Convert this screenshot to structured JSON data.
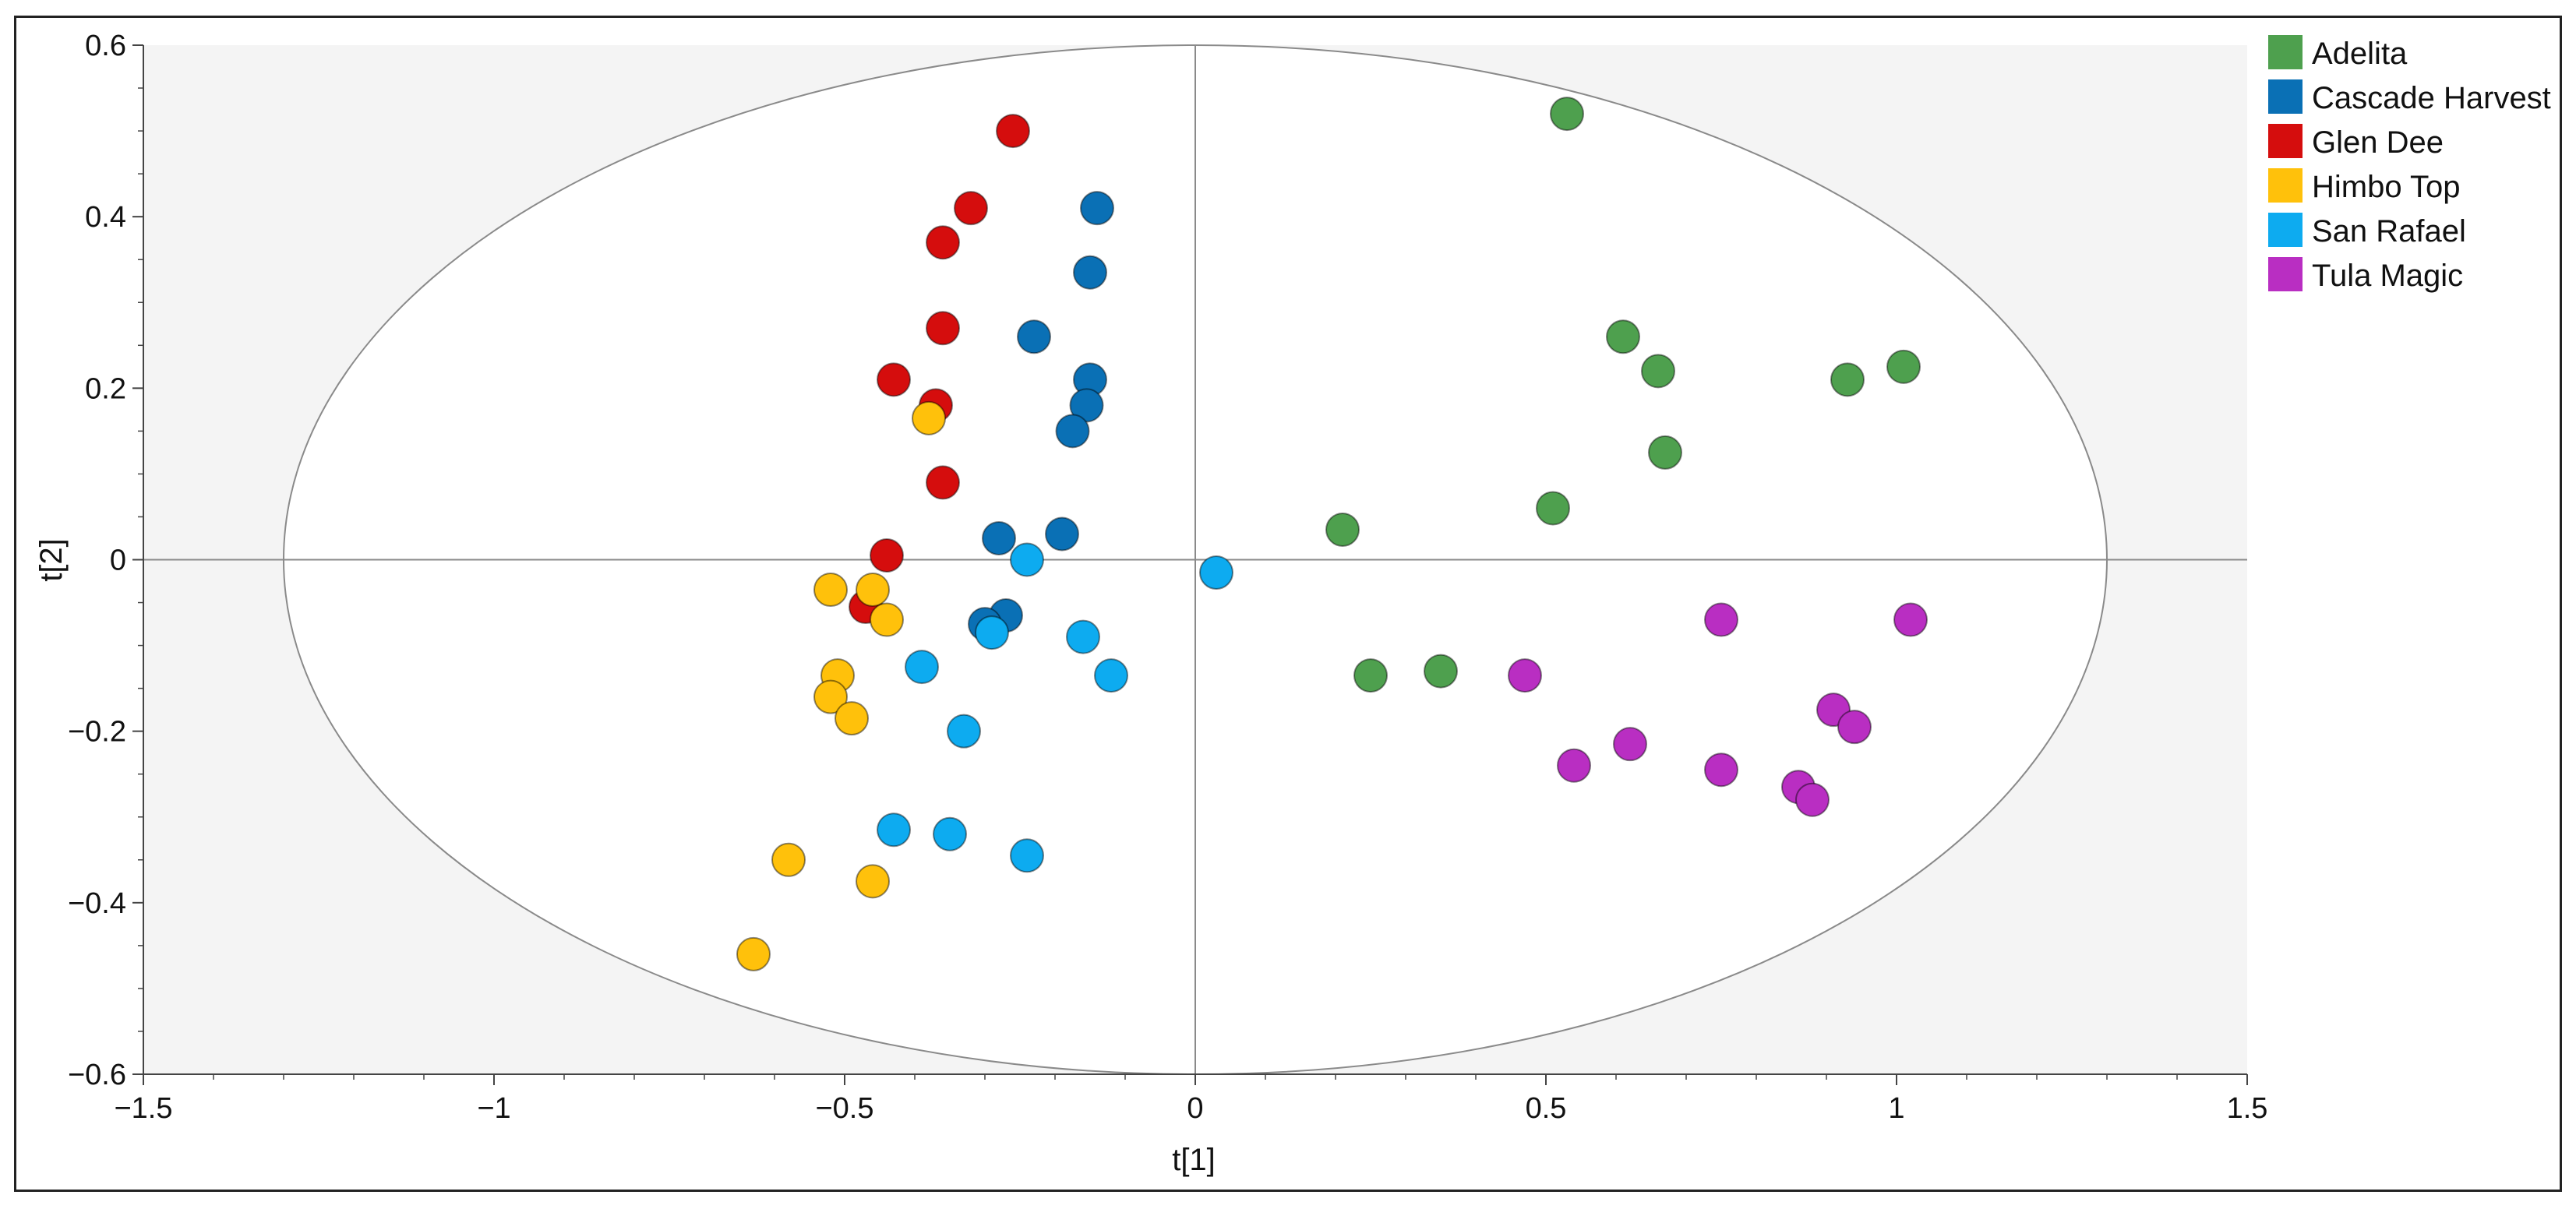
{
  "chart_data": {
    "type": "scatter",
    "title": "",
    "xlabel": "t[1]",
    "ylabel": "t[2]",
    "xlim": [
      -1.5,
      1.5
    ],
    "ylim": [
      -0.6,
      0.6
    ],
    "x_ticks": [
      -1.5,
      -1,
      -0.5,
      0,
      0.5,
      1,
      1.5
    ],
    "x_tick_labels": [
      "−1.5",
      "−1",
      "−0.5",
      "0",
      "0.5",
      "1",
      "1.5"
    ],
    "y_ticks": [
      0.6,
      0.4,
      0.2,
      0,
      -0.2,
      -0.4,
      -0.6
    ],
    "y_tick_labels": [
      "0.6",
      "0.4",
      "0.2",
      "0",
      "−0.2",
      "−0.4",
      "−0.6"
    ],
    "grid": false,
    "legend_position": "top-right",
    "hotelling_ellipse": {
      "center": [
        0,
        0
      ],
      "radius_x": 1.3,
      "radius_y": 0.6
    },
    "series": [
      {
        "name": "Adelita",
        "color": "#4ea04e",
        "points": [
          [
            0.53,
            0.52
          ],
          [
            0.61,
            0.26
          ],
          [
            0.66,
            0.22
          ],
          [
            0.67,
            0.125
          ],
          [
            0.51,
            0.06
          ],
          [
            0.93,
            0.21
          ],
          [
            1.01,
            0.225
          ],
          [
            0.21,
            0.035
          ],
          [
            0.25,
            -0.135
          ],
          [
            0.35,
            -0.13
          ]
        ]
      },
      {
        "name": "Cascade Harvest",
        "color": "#0a70b5",
        "points": [
          [
            -0.14,
            0.41
          ],
          [
            -0.15,
            0.335
          ],
          [
            -0.23,
            0.26
          ],
          [
            -0.15,
            0.21
          ],
          [
            -0.155,
            0.18
          ],
          [
            -0.175,
            0.15
          ],
          [
            -0.19,
            0.03
          ],
          [
            -0.28,
            0.025
          ],
          [
            -0.27,
            -0.065
          ],
          [
            -0.3,
            -0.075
          ]
        ]
      },
      {
        "name": "Glen Dee",
        "color": "#d50d0d",
        "points": [
          [
            -0.26,
            0.5
          ],
          [
            -0.32,
            0.41
          ],
          [
            -0.36,
            0.37
          ],
          [
            -0.36,
            0.27
          ],
          [
            -0.43,
            0.21
          ],
          [
            -0.37,
            0.18
          ],
          [
            -0.36,
            0.09
          ],
          [
            -0.44,
            0.005
          ],
          [
            -0.47,
            -0.055
          ]
        ]
      },
      {
        "name": "Himbo Top",
        "color": "#ffc10b",
        "points": [
          [
            -0.38,
            0.165
          ],
          [
            -0.52,
            -0.035
          ],
          [
            -0.46,
            -0.035
          ],
          [
            -0.44,
            -0.07
          ],
          [
            -0.51,
            -0.135
          ],
          [
            -0.52,
            -0.16
          ],
          [
            -0.49,
            -0.185
          ],
          [
            -0.58,
            -0.35
          ],
          [
            -0.46,
            -0.375
          ],
          [
            -0.63,
            -0.46
          ]
        ]
      },
      {
        "name": "San Rafael",
        "color": "#0dabf0",
        "points": [
          [
            0.03,
            -0.015
          ],
          [
            -0.24,
            0.0
          ],
          [
            -0.16,
            -0.09
          ],
          [
            -0.29,
            -0.085
          ],
          [
            -0.39,
            -0.125
          ],
          [
            -0.12,
            -0.135
          ],
          [
            -0.33,
            -0.2
          ],
          [
            -0.43,
            -0.315
          ],
          [
            -0.35,
            -0.32
          ],
          [
            -0.24,
            -0.345
          ]
        ]
      },
      {
        "name": "Tula Magic",
        "color": "#b92ec2",
        "points": [
          [
            0.75,
            -0.07
          ],
          [
            1.02,
            -0.07
          ],
          [
            0.47,
            -0.135
          ],
          [
            0.91,
            -0.175
          ],
          [
            0.94,
            -0.195
          ],
          [
            0.62,
            -0.215
          ],
          [
            0.54,
            -0.24
          ],
          [
            0.75,
            -0.245
          ],
          [
            0.86,
            -0.265
          ],
          [
            0.88,
            -0.28
          ]
        ]
      }
    ]
  }
}
